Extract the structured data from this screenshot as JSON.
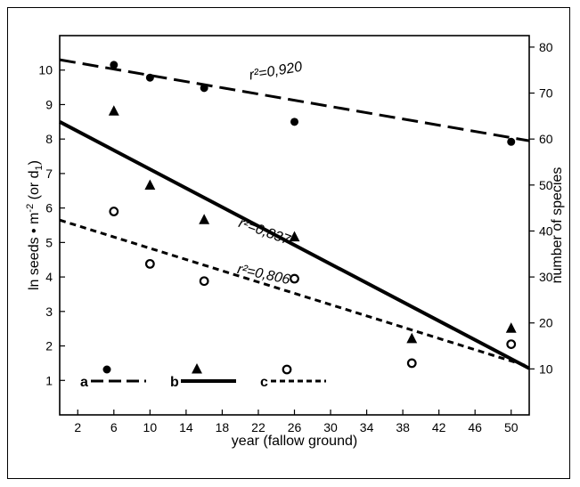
{
  "chart_data": {
    "type": "scatter",
    "xlabel": "year (fallow ground)",
    "ylabel_left": "ln seeds • m",
    "ylabel_left_sup": "-2",
    "ylabel_left_rest": " (or d",
    "ylabel_left_sub": "1",
    "ylabel_left_end": ")",
    "ylabel_right": "number of species",
    "xlim": [
      0,
      52
    ],
    "ylim_left": [
      0,
      11
    ],
    "ylim_right": [
      0,
      82.5
    ],
    "x_ticks": [
      2,
      6,
      10,
      14,
      18,
      22,
      26,
      30,
      34,
      38,
      42,
      46,
      50
    ],
    "y_left_ticks": [
      1,
      2,
      3,
      4,
      5,
      6,
      7,
      8,
      9,
      10
    ],
    "y_right_ticks": [
      10,
      20,
      30,
      40,
      50,
      60,
      70,
      80
    ],
    "series": [
      {
        "id": "a",
        "marker": "filled-circle",
        "line_style": "long-dash",
        "points": [
          [
            6,
            10.15
          ],
          [
            10,
            9.78
          ],
          [
            16,
            9.48
          ],
          [
            26,
            8.5
          ],
          [
            50,
            7.92
          ]
        ],
        "fit": [
          [
            0,
            10.3
          ],
          [
            52,
            7.95
          ]
        ],
        "r2_label": "r²=0,920"
      },
      {
        "id": "b",
        "marker": "filled-triangle",
        "line_style": "solid-thick",
        "points": [
          [
            6,
            8.8
          ],
          [
            10,
            6.65
          ],
          [
            16,
            5.65
          ],
          [
            26,
            5.15
          ],
          [
            39,
            2.2
          ],
          [
            50,
            2.5
          ]
        ],
        "fit": [
          [
            0,
            8.5
          ],
          [
            52,
            1.35
          ]
        ],
        "r2_label": "r²=0,837"
      },
      {
        "id": "c",
        "marker": "open-circle",
        "line_style": "short-dash",
        "points": [
          [
            6,
            5.9
          ],
          [
            10,
            4.38
          ],
          [
            16,
            3.88
          ],
          [
            26,
            3.95
          ],
          [
            39,
            1.5
          ],
          [
            50,
            2.05
          ]
        ],
        "fit": [
          [
            0,
            5.65
          ],
          [
            52,
            1.4
          ]
        ],
        "r2_label": "r²=0,806"
      }
    ],
    "legend": [
      {
        "letter": "a",
        "marker": "filled-circle",
        "line_style": "long-dash"
      },
      {
        "letter": "b",
        "marker": "filled-triangle",
        "line_style": "solid-thick"
      },
      {
        "letter": "c",
        "marker": "open-circle",
        "line_style": "short-dash"
      }
    ]
  }
}
